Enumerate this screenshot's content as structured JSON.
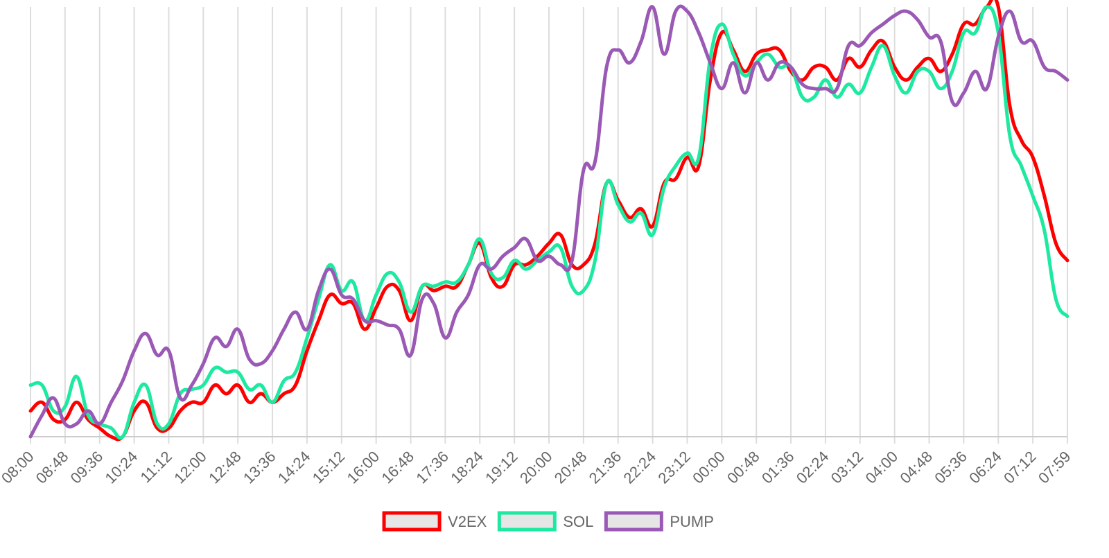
{
  "chart_data": {
    "type": "line",
    "categories": [
      "08:00",
      null,
      null,
      "08:48",
      null,
      null,
      "09:36",
      null,
      null,
      "10:24",
      null,
      null,
      "11:12",
      null,
      null,
      "12:00",
      null,
      null,
      "12:48",
      null,
      null,
      "13:36",
      null,
      null,
      "14:24",
      null,
      null,
      "15:12",
      null,
      null,
      "16:00",
      null,
      null,
      "16:48",
      null,
      null,
      "17:36",
      null,
      null,
      "18:24",
      null,
      null,
      "19:12",
      null,
      null,
      "20:00",
      null,
      null,
      "20:48",
      null,
      null,
      "21:36",
      null,
      null,
      "22:24",
      null,
      null,
      "23:12",
      null,
      null,
      "00:00",
      null,
      null,
      "00:48",
      null,
      null,
      "01:36",
      null,
      null,
      "02:24",
      null,
      null,
      "03:12",
      null,
      null,
      "04:00",
      null,
      null,
      "04:48",
      null,
      null,
      "05:36",
      null,
      null,
      "06:24",
      null,
      null,
      "07:12",
      null,
      null,
      "07:59"
    ],
    "ylim": [
      0,
      100
    ],
    "grid": true,
    "legend": "bottom",
    "series": [
      {
        "name": "V2EX",
        "color": "#ff0000",
        "values": [
          6,
          8,
          4,
          4,
          8,
          4,
          2,
          0,
          0,
          6,
          8,
          2,
          2,
          6,
          8,
          8,
          12,
          10,
          12,
          8,
          10,
          8,
          10,
          12,
          20,
          27,
          33,
          31,
          31,
          25,
          30,
          35,
          34,
          27,
          35,
          34,
          35,
          35,
          40,
          45,
          37,
          35,
          40,
          40,
          42,
          45,
          47,
          40,
          40,
          45,
          59,
          55,
          51,
          53,
          49,
          59,
          60,
          65,
          63,
          83,
          94,
          90,
          85,
          89,
          90,
          90,
          85,
          83,
          86,
          86,
          83,
          88,
          86,
          90,
          92,
          86,
          83,
          86,
          88,
          85,
          89,
          96,
          96,
          100,
          100,
          77,
          69,
          65,
          56,
          45,
          41
        ]
      },
      {
        "name": "SOL",
        "color": "#1de9a0",
        "values": [
          12,
          12,
          6,
          7,
          14,
          5,
          3,
          2,
          0,
          8,
          12,
          3,
          3,
          10,
          11,
          12,
          16,
          15,
          15,
          11,
          12,
          8,
          13,
          15,
          23,
          32,
          40,
          34,
          36,
          27,
          33,
          38,
          36,
          29,
          35,
          35,
          36,
          36,
          40,
          46,
          38,
          37,
          41,
          39,
          41,
          43,
          44,
          35,
          34,
          41,
          59,
          54,
          50,
          52,
          47,
          58,
          63,
          66,
          65,
          88,
          96,
          89,
          84,
          87,
          89,
          86,
          86,
          79,
          79,
          83,
          79,
          82,
          80,
          86,
          91,
          84,
          80,
          85,
          85,
          81,
          85,
          94,
          94,
          100,
          94,
          70,
          63,
          56,
          48,
          32,
          28
        ]
      },
      {
        "name": "PUMP",
        "color": "#9b59b6",
        "values": [
          0,
          5,
          9,
          3,
          3,
          6,
          3,
          8,
          13,
          20,
          24,
          19,
          20,
          9,
          12,
          17,
          23,
          21,
          25,
          18,
          17,
          20,
          25,
          29,
          25,
          34,
          39,
          33,
          32,
          27,
          27,
          26,
          25,
          19,
          32,
          31,
          23,
          29,
          33,
          40,
          39,
          42,
          44,
          46,
          41,
          42,
          40,
          41,
          62,
          64,
          86,
          90,
          87,
          92,
          100,
          89,
          99,
          99,
          94,
          87,
          81,
          87,
          80,
          87,
          83,
          87,
          86,
          82,
          81,
          81,
          81,
          91,
          91,
          94,
          96,
          98,
          99,
          97,
          93,
          92,
          78,
          80,
          85,
          81,
          93,
          99,
          92,
          92,
          86,
          85,
          83
        ]
      }
    ]
  }
}
